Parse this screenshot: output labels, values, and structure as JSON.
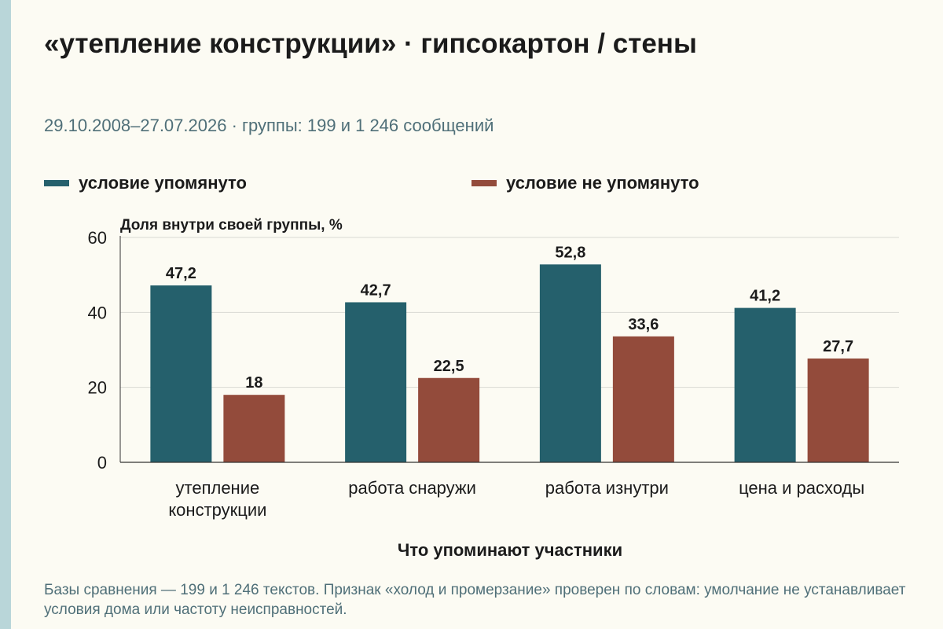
{
  "title": "«утепление конструкции» · гипсокартон / стены",
  "subtitle": "29.10.2008–27.07.2026 · группы: 199 и 1 246 сообщений",
  "footnote": "Базы сравнения — 199 и 1 246 текстов. Признак «холод и промерзание» проверен по словам: умолчание не устанавливает условия дома или частоту неисправностей.",
  "colors": {
    "series_a": "#25606c",
    "series_b": "#934b3b"
  },
  "chart_data": {
    "type": "bar",
    "ylabel": "Доля внутри своей группы, %",
    "xlabel": "Что упоминают участники",
    "ylim": [
      0,
      60
    ],
    "yticks": [
      0,
      20,
      40,
      60
    ],
    "grid": true,
    "legend_position": "top",
    "categories": [
      "утепление конструкции",
      "работа снаружи",
      "работа изнутри",
      "цена и расходы"
    ],
    "series": [
      {
        "name": "условие упомянуто",
        "values": [
          47.2,
          42.7,
          52.8,
          41.2
        ],
        "labels": [
          "47,2",
          "42,7",
          "52,8",
          "41,2"
        ]
      },
      {
        "name": "условие не упомянуто",
        "values": [
          18,
          22.5,
          33.6,
          27.7
        ],
        "labels": [
          "18",
          "22,5",
          "33,6",
          "27,7"
        ]
      }
    ]
  }
}
